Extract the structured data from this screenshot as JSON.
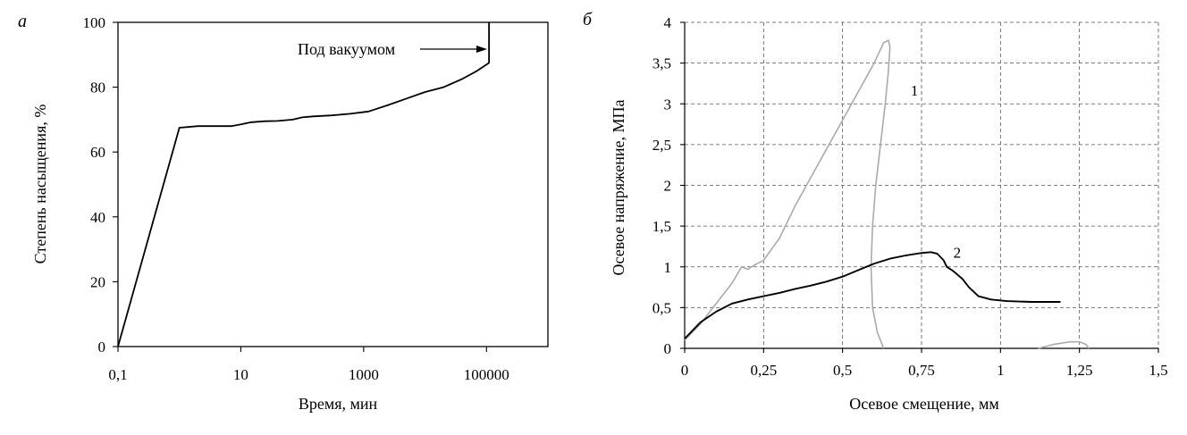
{
  "chart_data": [
    {
      "panel": "а",
      "type": "line",
      "xlabel": "Время, мин",
      "ylabel": "Степень насыщения, %",
      "x_scale": "log",
      "xlim": [
        0.1,
        1000000
      ],
      "ylim": [
        0,
        100
      ],
      "x_ticks": [
        0.1,
        10,
        1000,
        100000
      ],
      "x_tick_labels": [
        "0,1",
        "10",
        "1000",
        "100000"
      ],
      "y_ticks": [
        0,
        20,
        40,
        60,
        80,
        100
      ],
      "y_tick_labels": [
        "0",
        "20",
        "40",
        "60",
        "80",
        "100"
      ],
      "grid": false,
      "annotation": "Под вакуумом",
      "series": [
        {
          "color": "#000000",
          "points": [
            [
              0.1,
              0
            ],
            [
              1,
              67.5
            ],
            [
              2,
              68
            ],
            [
              5,
              68
            ],
            [
              7,
              68
            ],
            [
              10,
              68.5
            ],
            [
              15,
              69.2
            ],
            [
              25,
              69.5
            ],
            [
              40,
              69.6
            ],
            [
              70,
              70
            ],
            [
              100,
              70.7
            ],
            [
              150,
              71
            ],
            [
              300,
              71.3
            ],
            [
              600,
              71.8
            ],
            [
              1200,
              72.5
            ],
            [
              2500,
              74.5
            ],
            [
              5000,
              76.5
            ],
            [
              10000,
              78.5
            ],
            [
              20000,
              80
            ],
            [
              40000,
              82.5
            ],
            [
              70000,
              85
            ],
            [
              110000,
              87.5
            ],
            [
              110000,
              100
            ]
          ]
        }
      ]
    },
    {
      "panel": "б",
      "type": "line",
      "xlabel": "Осевое смещение, мм",
      "ylabel": "Осевое напряжение, МПа",
      "xlim": [
        0,
        1.5
      ],
      "ylim": [
        0,
        4
      ],
      "x_ticks": [
        0,
        0.25,
        0.5,
        0.75,
        1,
        1.25,
        1.5
      ],
      "x_tick_labels": [
        "0",
        "0,25",
        "0,5",
        "0,75",
        "1",
        "1,25",
        "1,5"
      ],
      "y_ticks": [
        0,
        0.5,
        1,
        1.5,
        2,
        2.5,
        3,
        3.5,
        4
      ],
      "y_tick_labels": [
        "0",
        "0,5",
        "1",
        "1,5",
        "2",
        "2,5",
        "3",
        "3,5",
        "4"
      ],
      "grid": true,
      "series": [
        {
          "name": "1",
          "color": "#aaaaaa",
          "points": [
            [
              0,
              0.1
            ],
            [
              0.05,
              0.3
            ],
            [
              0.1,
              0.55
            ],
            [
              0.15,
              0.8
            ],
            [
              0.18,
              1.0
            ],
            [
              0.2,
              0.97
            ],
            [
              0.22,
              1.02
            ],
            [
              0.25,
              1.08
            ],
            [
              0.3,
              1.35
            ],
            [
              0.35,
              1.75
            ],
            [
              0.4,
              2.1
            ],
            [
              0.45,
              2.45
            ],
            [
              0.5,
              2.8
            ],
            [
              0.55,
              3.15
            ],
            [
              0.6,
              3.5
            ],
            [
              0.63,
              3.75
            ],
            [
              0.645,
              3.78
            ],
            [
              0.65,
              3.7
            ],
            [
              0.645,
              3.4
            ],
            [
              0.635,
              3.0
            ],
            [
              0.62,
              2.5
            ],
            [
              0.605,
              2.0
            ],
            [
              0.595,
              1.5
            ],
            [
              0.59,
              1.0
            ],
            [
              0.595,
              0.5
            ],
            [
              0.61,
              0.2
            ],
            [
              0.63,
              0.0
            ]
          ]
        },
        {
          "name": "",
          "color": "#aaaaaa",
          "points": [
            [
              1.12,
              0.0
            ],
            [
              1.17,
              0.05
            ],
            [
              1.22,
              0.08
            ],
            [
              1.25,
              0.08
            ],
            [
              1.27,
              0.05
            ],
            [
              1.28,
              0.0
            ]
          ]
        },
        {
          "name": "2",
          "color": "#000000",
          "points": [
            [
              0,
              0.12
            ],
            [
              0.02,
              0.2
            ],
            [
              0.05,
              0.32
            ],
            [
              0.1,
              0.45
            ],
            [
              0.15,
              0.55
            ],
            [
              0.2,
              0.6
            ],
            [
              0.25,
              0.64
            ],
            [
              0.3,
              0.68
            ],
            [
              0.35,
              0.73
            ],
            [
              0.4,
              0.77
            ],
            [
              0.45,
              0.82
            ],
            [
              0.5,
              0.88
            ],
            [
              0.55,
              0.96
            ],
            [
              0.6,
              1.04
            ],
            [
              0.65,
              1.1
            ],
            [
              0.7,
              1.14
            ],
            [
              0.75,
              1.17
            ],
            [
              0.78,
              1.18
            ],
            [
              0.8,
              1.16
            ],
            [
              0.82,
              1.08
            ],
            [
              0.83,
              1.0
            ],
            [
              0.85,
              0.95
            ],
            [
              0.88,
              0.85
            ],
            [
              0.9,
              0.75
            ],
            [
              0.93,
              0.64
            ],
            [
              0.97,
              0.6
            ],
            [
              1.02,
              0.58
            ],
            [
              1.1,
              0.57
            ],
            [
              1.19,
              0.57
            ]
          ]
        }
      ]
    }
  ]
}
